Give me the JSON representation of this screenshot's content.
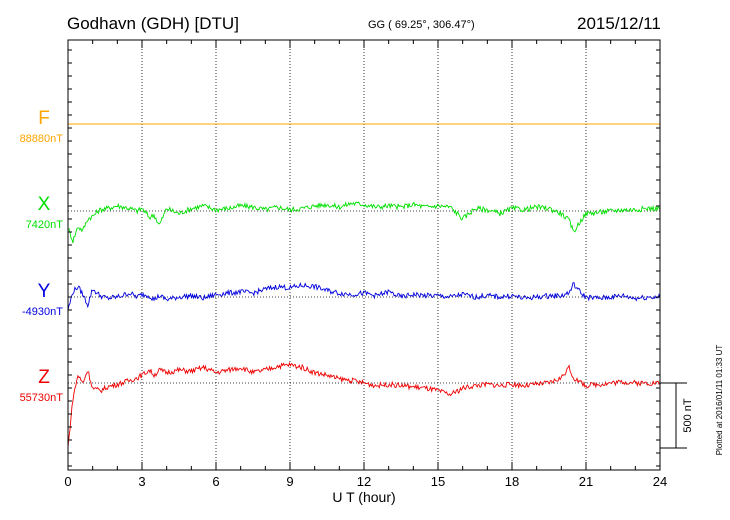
{
  "header": {
    "station": "Godhavn (GDH)  [DTU]",
    "coords": "GG ( 69.25°, 306.47°)",
    "date": "2015/12/11"
  },
  "side_note": "Plotted at 2016/01/11 01:33 UT",
  "scale_label": "500 nT",
  "chart_data": {
    "type": "line",
    "xlabel": "U T (hour)",
    "xlim": [
      0,
      24
    ],
    "xticks": [
      0,
      3,
      6,
      9,
      12,
      15,
      18,
      21,
      24
    ],
    "scale_bar_nT": 500,
    "series": [
      {
        "name": "F",
        "baseline_label": "88880nT",
        "color": "#ffa500",
        "baseline_nT": 88880,
        "x": [
          0,
          24
        ],
        "offset_nT": [
          0,
          0
        ]
      },
      {
        "name": "X",
        "baseline_label": "7420nT",
        "color": "#00e000",
        "baseline_nT": 7420,
        "x": [
          0,
          0.2,
          0.4,
          0.6,
          0.8,
          1.0,
          1.3,
          1.6,
          2.0,
          2.5,
          2.8,
          3.0,
          3.3,
          3.5,
          3.7,
          4.0,
          4.5,
          5.0,
          5.5,
          6.0,
          6.5,
          7.0,
          7.5,
          8.0,
          8.5,
          9.0,
          9.5,
          10.0,
          10.5,
          11.0,
          11.5,
          12.0,
          12.5,
          13.0,
          13.5,
          14.0,
          14.5,
          15.0,
          15.5,
          16.0,
          16.5,
          17.0,
          17.5,
          18.0,
          18.5,
          19.0,
          19.5,
          20.0,
          20.3,
          20.5,
          20.8,
          21.0,
          21.5,
          22.0,
          22.5,
          23.0,
          23.5,
          24.0
        ],
        "offset_nT": [
          -130,
          -230,
          -120,
          -150,
          -60,
          -40,
          10,
          20,
          40,
          20,
          0,
          20,
          -50,
          -30,
          -110,
          20,
          -20,
          20,
          40,
          10,
          20,
          40,
          30,
          10,
          30,
          10,
          20,
          40,
          50,
          30,
          60,
          50,
          30,
          40,
          30,
          50,
          30,
          40,
          30,
          -60,
          20,
          10,
          -20,
          20,
          10,
          30,
          20,
          -20,
          -70,
          -160,
          -70,
          -20,
          -10,
          0,
          10,
          10,
          20,
          20
        ]
      },
      {
        "name": "Y",
        "baseline_label": "-4930nT",
        "color": "#0000dd",
        "baseline_nT": -4930,
        "x": [
          0,
          0.2,
          0.4,
          0.6,
          0.8,
          1.0,
          1.3,
          1.6,
          2.0,
          2.5,
          2.8,
          3.0,
          3.3,
          3.5,
          3.7,
          4.0,
          4.5,
          5.0,
          5.5,
          6.0,
          6.5,
          7.0,
          7.5,
          8.0,
          8.5,
          9.0,
          9.5,
          10.0,
          10.5,
          11.0,
          11.5,
          12.0,
          12.5,
          13.0,
          13.5,
          14.0,
          14.5,
          15.0,
          15.5,
          16.0,
          16.5,
          17.0,
          17.5,
          18.0,
          18.5,
          19.0,
          19.5,
          20.0,
          20.3,
          20.5,
          20.8,
          21.0,
          21.5,
          22.0,
          22.5,
          23.0,
          23.5,
          24.0
        ],
        "offset_nT": [
          -100,
          40,
          80,
          20,
          -60,
          60,
          10,
          -10,
          0,
          30,
          0,
          20,
          10,
          -20,
          10,
          -20,
          0,
          10,
          -10,
          20,
          30,
          40,
          30,
          60,
          80,
          70,
          90,
          80,
          50,
          30,
          20,
          30,
          10,
          40,
          0,
          20,
          10,
          10,
          0,
          20,
          0,
          10,
          0,
          10,
          -10,
          0,
          10,
          10,
          30,
          100,
          30,
          0,
          -10,
          0,
          10,
          -10,
          0,
          0
        ]
      },
      {
        "name": "Z",
        "baseline_label": "55730nT",
        "color": "#ee0000",
        "baseline_nT": 55730,
        "x": [
          0,
          0.1,
          0.2,
          0.4,
          0.6,
          0.8,
          1.0,
          1.3,
          1.6,
          2.0,
          2.5,
          2.8,
          3.0,
          3.3,
          3.5,
          3.7,
          4.0,
          4.5,
          5.0,
          5.5,
          6.0,
          6.5,
          7.0,
          7.5,
          8.0,
          8.5,
          9.0,
          9.5,
          10.0,
          10.5,
          11.0,
          11.5,
          12.0,
          12.5,
          13.0,
          13.5,
          14.0,
          14.5,
          15.0,
          15.5,
          16.0,
          16.5,
          17.0,
          17.5,
          18.0,
          18.5,
          19.0,
          19.5,
          20.0,
          20.3,
          20.5,
          20.8,
          21.0,
          21.5,
          22.0,
          22.5,
          23.0,
          23.5,
          24.0
        ],
        "offset_nT": [
          -500,
          -300,
          -120,
          60,
          0,
          100,
          -40,
          -60,
          -30,
          -10,
          20,
          40,
          60,
          100,
          60,
          100,
          80,
          100,
          90,
          120,
          80,
          100,
          120,
          80,
          100,
          130,
          140,
          120,
          80,
          60,
          30,
          20,
          0,
          -20,
          -10,
          -20,
          -30,
          -40,
          -60,
          -90,
          -40,
          -20,
          -10,
          -20,
          -10,
          -20,
          -10,
          0,
          40,
          120,
          40,
          0,
          -20,
          -10,
          0,
          10,
          0,
          0,
          0
        ]
      }
    ]
  }
}
